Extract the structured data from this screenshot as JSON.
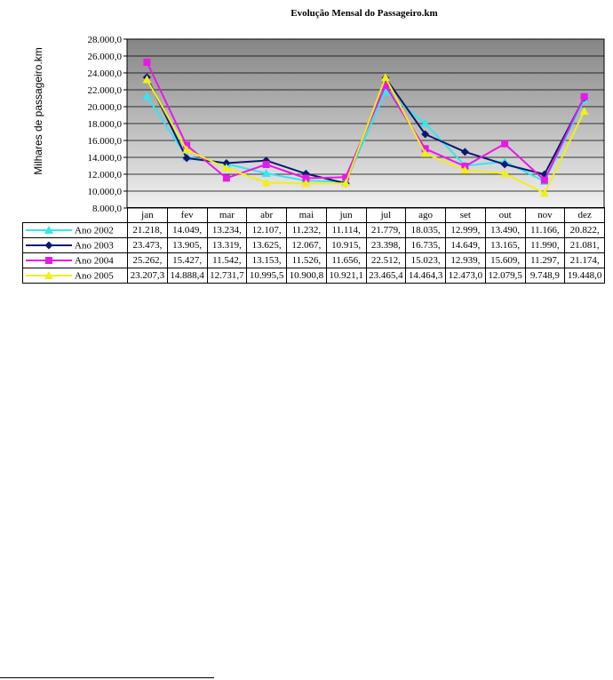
{
  "chart_data": {
    "type": "line",
    "title": "Evolução Mensal do Passageiro.km",
    "xlabel": "",
    "ylabel": "Milhares de passageiro.km",
    "categories": [
      "jan",
      "fev",
      "mar",
      "abr",
      "mai",
      "jun",
      "jul",
      "ago",
      "set",
      "out",
      "nov",
      "dez"
    ],
    "ylim": [
      8000,
      28000
    ],
    "y_ticks": [
      "8.000,0",
      "10.000,0",
      "12.000,0",
      "14.000,0",
      "16.000,0",
      "18.000,0",
      "20.000,0",
      "22.000,0",
      "24.000,0",
      "26.000,0",
      "28.000,0"
    ],
    "grid": true,
    "legend": "data-table",
    "series": [
      {
        "name": "Ano 2002",
        "color": "#33e6f2",
        "marker": "triangle",
        "values": [
          21218,
          14049,
          13234,
          12107,
          11232,
          11114,
          21779,
          18035,
          12999,
          13490,
          11166,
          20822
        ],
        "labels": [
          "21.218,",
          "14.049,",
          "13.234,",
          "12.107,",
          "11.232,",
          "11.114,",
          "21.779,",
          "18.035,",
          "12.999,",
          "13.490,",
          "11.166,",
          "20.822,"
        ]
      },
      {
        "name": "Ano 2003",
        "color": "#0a1a6e",
        "marker": "diamond",
        "values": [
          23473,
          13905,
          13319,
          13625,
          12067,
          10915,
          23398,
          16735,
          14649,
          13165,
          11990,
          21081
        ],
        "labels": [
          "23.473,",
          "13.905,",
          "13.319,",
          "13.625,",
          "12.067,",
          "10.915,",
          "23.398,",
          "16.735,",
          "14.649,",
          "13.165,",
          "11.990,",
          "21.081,"
        ]
      },
      {
        "name": "Ano 2004",
        "color": "#e61ae6",
        "marker": "square",
        "values": [
          25262,
          15427,
          11542,
          13153,
          11526,
          11656,
          22512,
          15023,
          12939,
          15609,
          11297,
          21174
        ],
        "labels": [
          "25.262,",
          "15.427,",
          "11.542,",
          "13.153,",
          "11.526,",
          "11.656,",
          "22.512,",
          "15.023,",
          "12.939,",
          "15.609,",
          "11.297,",
          "21.174,"
        ]
      },
      {
        "name": "Ano 2005",
        "color": "#f2ee1a",
        "marker": "triangle",
        "values": [
          23207.3,
          14888.4,
          12731.7,
          10995.5,
          10900.8,
          10921.1,
          23465.4,
          14464.3,
          12473.0,
          12079.5,
          9748.9,
          19448.0
        ],
        "labels": [
          "23.207,3",
          "14.888,4",
          "12.731,7",
          "10.995,5",
          "10.900,8",
          "10.921,1",
          "23.465,4",
          "14.464,3",
          "12.473,0",
          "12.079,5",
          "9.748,9",
          "19.448,0"
        ]
      }
    ]
  }
}
